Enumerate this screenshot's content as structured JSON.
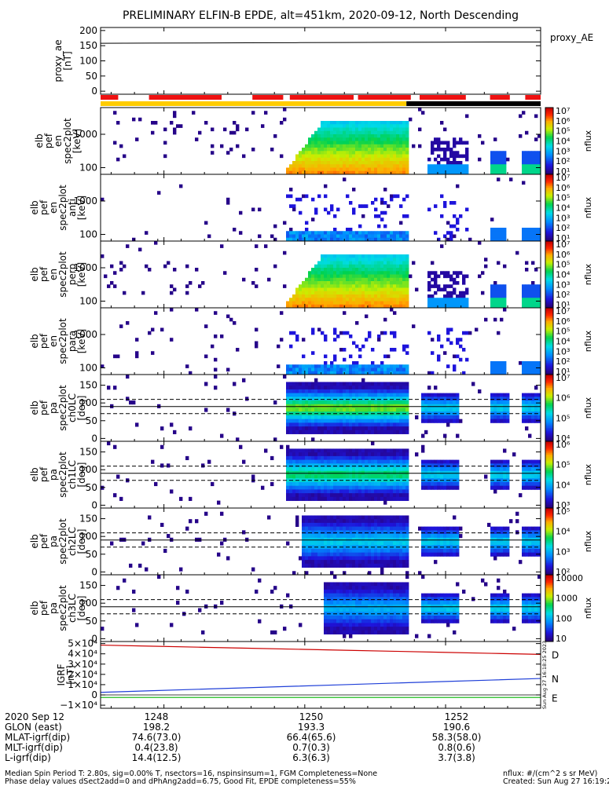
{
  "title": "PRELIMINARY ELFIN-B EPDE, alt=451km, 2020-09-12, North Descending",
  "chart_data": {
    "type": "heatmap",
    "time_ticks": [
      "1248",
      "1250",
      "1252"
    ],
    "proxy_ae": {
      "type": "line",
      "ylabel": [
        "proxy_ae",
        "[nT]"
      ],
      "legend": "proxy_AE",
      "yticks": [
        "200",
        "150",
        "100",
        "50",
        "0"
      ],
      "ylim": [
        -10,
        210
      ],
      "values": [
        158,
        158.5,
        159,
        159.5,
        160,
        160.5,
        161,
        161.5,
        162,
        162
      ]
    },
    "spec_panels": [
      {
        "ylabel": [
          "elb",
          "pef",
          "en",
          "spec2plot",
          "[keV]"
        ],
        "yticks": [
          "1000",
          "100"
        ],
        "cbar_label": "nflux",
        "cbar_ticks": [
          "10⁷",
          "10⁶",
          "10⁵",
          "10⁴",
          "10³",
          "10²",
          "10¹"
        ]
      },
      {
        "ylabel": [
          "elb",
          "pef",
          "en",
          "spec2plot",
          "anti",
          "[keV]"
        ],
        "yticks": [
          "1000",
          "100"
        ],
        "cbar_label": "nflux",
        "cbar_ticks": [
          "10⁷",
          "10⁶",
          "10⁵",
          "10⁴",
          "10³",
          "10²",
          "10¹"
        ]
      },
      {
        "ylabel": [
          "elb",
          "pef",
          "en",
          "spec2plot",
          "perp",
          "[keV]"
        ],
        "yticks": [
          "1000",
          "100"
        ],
        "cbar_label": "nflux",
        "cbar_ticks": [
          "10⁷",
          "10⁶",
          "10⁵",
          "10⁴",
          "10³",
          "10²",
          "10¹"
        ]
      },
      {
        "ylabel": [
          "elb",
          "pef",
          "en",
          "spec2plot",
          "para",
          "[keV]"
        ],
        "yticks": [
          "1000",
          "100"
        ],
        "cbar_label": "nflux",
        "cbar_ticks": [
          "10⁷",
          "10⁶",
          "10⁵",
          "10⁴",
          "10³",
          "10²",
          "10¹"
        ]
      },
      {
        "ylabel": [
          "elb",
          "pef",
          "pa",
          "spec2plot",
          "ch0LC",
          "[deg]"
        ],
        "yticks": [
          "150",
          "100",
          "50",
          "0"
        ],
        "cbar_label": "nflux",
        "cbar_ticks": [
          "10⁷",
          "10⁶",
          "10⁵",
          "10⁴"
        ]
      },
      {
        "ylabel": [
          "elb",
          "pef",
          "pa",
          "spec2plot",
          "ch1LC",
          "[deg]"
        ],
        "yticks": [
          "150",
          "100",
          "50",
          "0"
        ],
        "cbar_label": "nflux",
        "cbar_ticks": [
          "10⁶",
          "10⁵",
          "10⁴",
          "10³"
        ]
      },
      {
        "ylabel": [
          "elb",
          "pef",
          "pa",
          "spec2plot",
          "ch2LC",
          "[deg]"
        ],
        "yticks": [
          "150",
          "100",
          "50",
          "0"
        ],
        "cbar_label": "nflux",
        "cbar_ticks": [
          "10⁵",
          "10⁴",
          "10³",
          "10²"
        ]
      },
      {
        "ylabel": [
          "elb",
          "pef",
          "pa",
          "spec2plot",
          "ch3LC",
          "[deg]"
        ],
        "yticks": [
          "150",
          "100",
          "50",
          "0"
        ],
        "cbar_label": "nflux",
        "cbar_ticks": [
          "10000",
          "1000",
          "100",
          "10"
        ]
      }
    ],
    "igrf": {
      "ylabel": [
        "IGRF",
        "[nT]"
      ],
      "yticks": [
        "5×10⁴",
        "4×10⁴",
        "3×10⁴",
        "2×10⁴",
        "1×10⁴",
        "0",
        "−1×10⁴"
      ],
      "ylim": [
        -13000,
        52000
      ],
      "series": [
        {
          "name": "D",
          "color": "#cc0000",
          "values": [
            48500,
            47500,
            46500,
            45500,
            44500,
            43500,
            42500,
            41500,
            40500,
            39500
          ]
        },
        {
          "name": "N",
          "color": "#1f3fd8",
          "values": [
            2500,
            4000,
            5500,
            7000,
            8500,
            10000,
            11500,
            13000,
            14500,
            16000
          ]
        },
        {
          "name": "E",
          "color": "#22bb22",
          "values": [
            -2500,
            -2500,
            -2500,
            -2500,
            -2500,
            -2500,
            -2500,
            -2500,
            -2500,
            -2500
          ]
        }
      ],
      "side_text": "Sun Aug 27 16:18:25 2023"
    }
  },
  "footer": {
    "rows": [
      {
        "label": "2020 Sep 12",
        "values": [
          "1248",
          "1250",
          "1252"
        ]
      },
      {
        "label": "GLON (east)",
        "values": [
          "198.2",
          "193.3",
          "190.6"
        ]
      },
      {
        "label": "MLAT-igrf(dip)",
        "values": [
          "74.6(73.0)",
          "66.4(65.6)",
          "58.3(58.0)"
        ]
      },
      {
        "label": "MLT-igrf(dip)",
        "values": [
          "0.4(23.8)",
          "0.7(0.3)",
          "0.8(0.6)"
        ]
      },
      {
        "label": "L-igrf(dip)",
        "values": [
          "14.4(12.5)",
          "6.3(6.3)",
          "3.7(3.8)"
        ]
      }
    ],
    "note_left_1": "Median Spin Period T: 2.80s, sig=0.00% T, nsectors=16, nspinsinsum=1, FGM Completeness=None",
    "note_left_2": "Phase delay values dSect2add=0 and dPhAng2add=6.75, Good Fit, EPDE completeness=55%",
    "note_right_1": "nflux: #/(cm^2 s sr MeV)",
    "note_right_2": "Created: Sun Aug 27 16:19:25 2023"
  }
}
